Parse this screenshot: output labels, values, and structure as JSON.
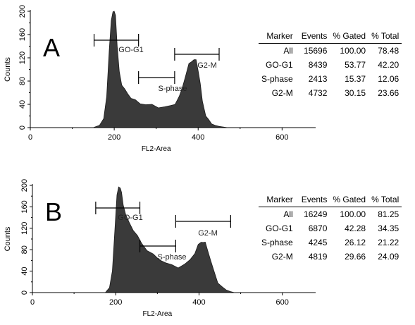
{
  "panels": [
    {
      "letter": "A",
      "chart_data": {
        "type": "area",
        "xlabel": "FL2-Area",
        "ylabel": "Counts",
        "xlim": [
          0,
          680
        ],
        "ylim": [
          0,
          200
        ],
        "xticks": [
          "0",
          "200",
          "400",
          "600"
        ],
        "yticks": [
          "0",
          "40",
          "80",
          "120",
          "160",
          "200"
        ],
        "x": [
          0,
          120,
          150,
          165,
          175,
          182,
          188,
          193,
          197,
          200,
          203,
          207,
          212,
          218,
          225,
          232,
          240,
          250,
          262,
          275,
          290,
          305,
          320,
          335,
          345,
          355,
          362,
          370,
          378,
          385,
          390,
          395,
          400,
          405,
          410,
          418,
          425,
          432,
          440,
          450,
          460,
          470,
          480,
          500,
          680
        ],
        "y": [
          0,
          0,
          0,
          4,
          15,
          55,
          130,
          185,
          200,
          200,
          195,
          140,
          95,
          75,
          65,
          58,
          52,
          46,
          42,
          40,
          38,
          36,
          35,
          37,
          42,
          52,
          68,
          90,
          108,
          115,
          117,
          115,
          100,
          75,
          45,
          22,
          12,
          7,
          4,
          2,
          1,
          0,
          0,
          0,
          0
        ],
        "markers": [
          {
            "label": "GO-G1",
            "start": 152,
            "end": 258
          },
          {
            "label": "S-phase",
            "start": 258,
            "end": 344
          },
          {
            "label": "G2-M",
            "start": 344,
            "end": 450
          }
        ],
        "table": {
          "headers": [
            "Marker",
            "Events",
            "% Gated",
            "% Total"
          ],
          "rows": [
            [
              "All",
              "15696",
              "100.00",
              "78.48"
            ],
            [
              "GO-G1",
              "8439",
              "53.77",
              "42.20"
            ],
            [
              "S-phase",
              "2413",
              "15.37",
              "12.06"
            ],
            [
              "G2-M",
              "4732",
              "30.15",
              "23.66"
            ]
          ]
        }
      }
    },
    {
      "letter": "B",
      "chart_data": {
        "type": "area",
        "xlabel": "FL2-Area",
        "ylabel": "Counts",
        "xlim": [
          0,
          680
        ],
        "ylim": [
          0,
          200
        ],
        "xticks": [
          "0",
          "200",
          "400",
          "600"
        ],
        "yticks": [
          "0",
          "40",
          "80",
          "120",
          "160",
          "200"
        ],
        "x": [
          0,
          150,
          175,
          185,
          192,
          198,
          203,
          207,
          211,
          214,
          218,
          224,
          232,
          242,
          252,
          262,
          275,
          290,
          305,
          320,
          335,
          350,
          365,
          378,
          390,
          398,
          405,
          410,
          415,
          420,
          428,
          436,
          445,
          455,
          465,
          475,
          485,
          500,
          680
        ],
        "y": [
          0,
          0,
          0,
          8,
          40,
          120,
          180,
          198,
          196,
          185,
          165,
          145,
          130,
          118,
          105,
          92,
          80,
          70,
          62,
          56,
          50,
          48,
          52,
          60,
          75,
          88,
          94,
          95,
          92,
          82,
          60,
          38,
          20,
          10,
          5,
          2,
          0,
          0,
          0
        ],
        "markers": [
          {
            "label": "GO-G1",
            "start": 152,
            "end": 258
          },
          {
            "label": "S-phase",
            "start": 258,
            "end": 344
          },
          {
            "label": "G2-M",
            "start": 344,
            "end": 476
          }
        ],
        "table": {
          "headers": [
            "Marker",
            "Events",
            "% Gated",
            "% Total"
          ],
          "rows": [
            [
              "All",
              "16249",
              "100.00",
              "81.25"
            ],
            [
              "GO-G1",
              "6870",
              "42.28",
              "34.35"
            ],
            [
              "S-phase",
              "4245",
              "26.12",
              "21.22"
            ],
            [
              "G2-M",
              "4819",
              "29.66",
              "24.09"
            ]
          ]
        }
      }
    }
  ]
}
